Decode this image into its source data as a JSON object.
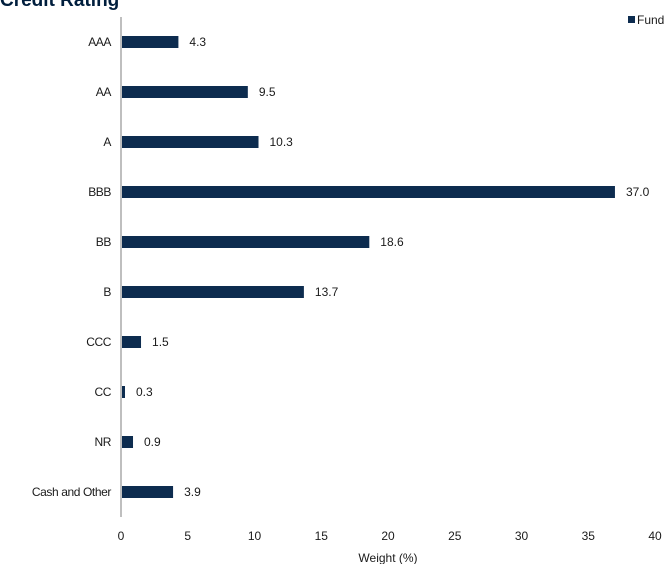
{
  "chart_data": {
    "type": "bar",
    "orientation": "horizontal",
    "title": "Credit Rating",
    "xlabel": "Weight (%)",
    "ylabel": "",
    "xlim": [
      0,
      40
    ],
    "xticks": [
      0,
      5,
      10,
      15,
      20,
      25,
      30,
      35,
      40
    ],
    "grid": false,
    "legend_position": "top-right",
    "categories": [
      "AAA",
      "AA",
      "A",
      "BBB",
      "BB",
      "B",
      "CCC",
      "CC",
      "NR",
      "Cash and Other"
    ],
    "series": [
      {
        "name": "Fund",
        "color": "#0d2c4f",
        "values": [
          4.3,
          9.5,
          10.3,
          37.0,
          18.6,
          13.7,
          1.5,
          0.3,
          0.9,
          3.9
        ],
        "labels": [
          "4.3",
          "9.5",
          "10.3",
          "37.0",
          "18.6",
          "13.7",
          "1.5",
          "0.3",
          "0.9",
          "3.9"
        ]
      }
    ]
  }
}
